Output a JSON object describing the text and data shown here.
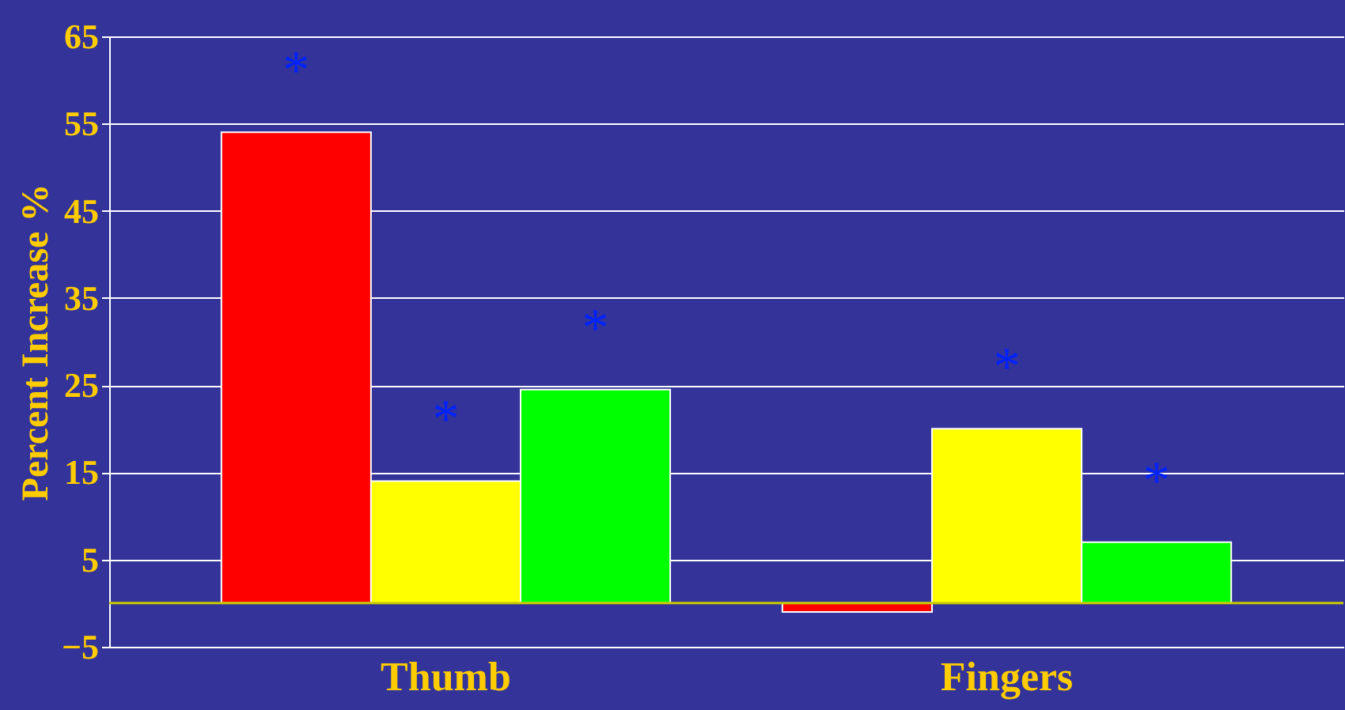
{
  "chart_data": {
    "type": "bar",
    "ylabel": "Percent Increase %",
    "categories": [
      "Thumb",
      "Fingers"
    ],
    "series": [
      {
        "color": "#ff0000",
        "values": [
          54,
          -1
        ],
        "value_labels": [
          "*",
          null
        ]
      },
      {
        "color": "#ffff00",
        "values": [
          14,
          20
        ],
        "value_labels": [
          "*",
          "*"
        ]
      },
      {
        "color": "#00ff00",
        "values": [
          24.5,
          7
        ],
        "value_labels": [
          "*",
          "*"
        ]
      }
    ],
    "ylim": [
      -5,
      65
    ],
    "yticks": [
      -5,
      5,
      15,
      25,
      35,
      45,
      55,
      65
    ],
    "grid": "y",
    "ref_lines": [
      {
        "axis": "y",
        "value": 0,
        "color": "#c8c800"
      }
    ]
  }
}
